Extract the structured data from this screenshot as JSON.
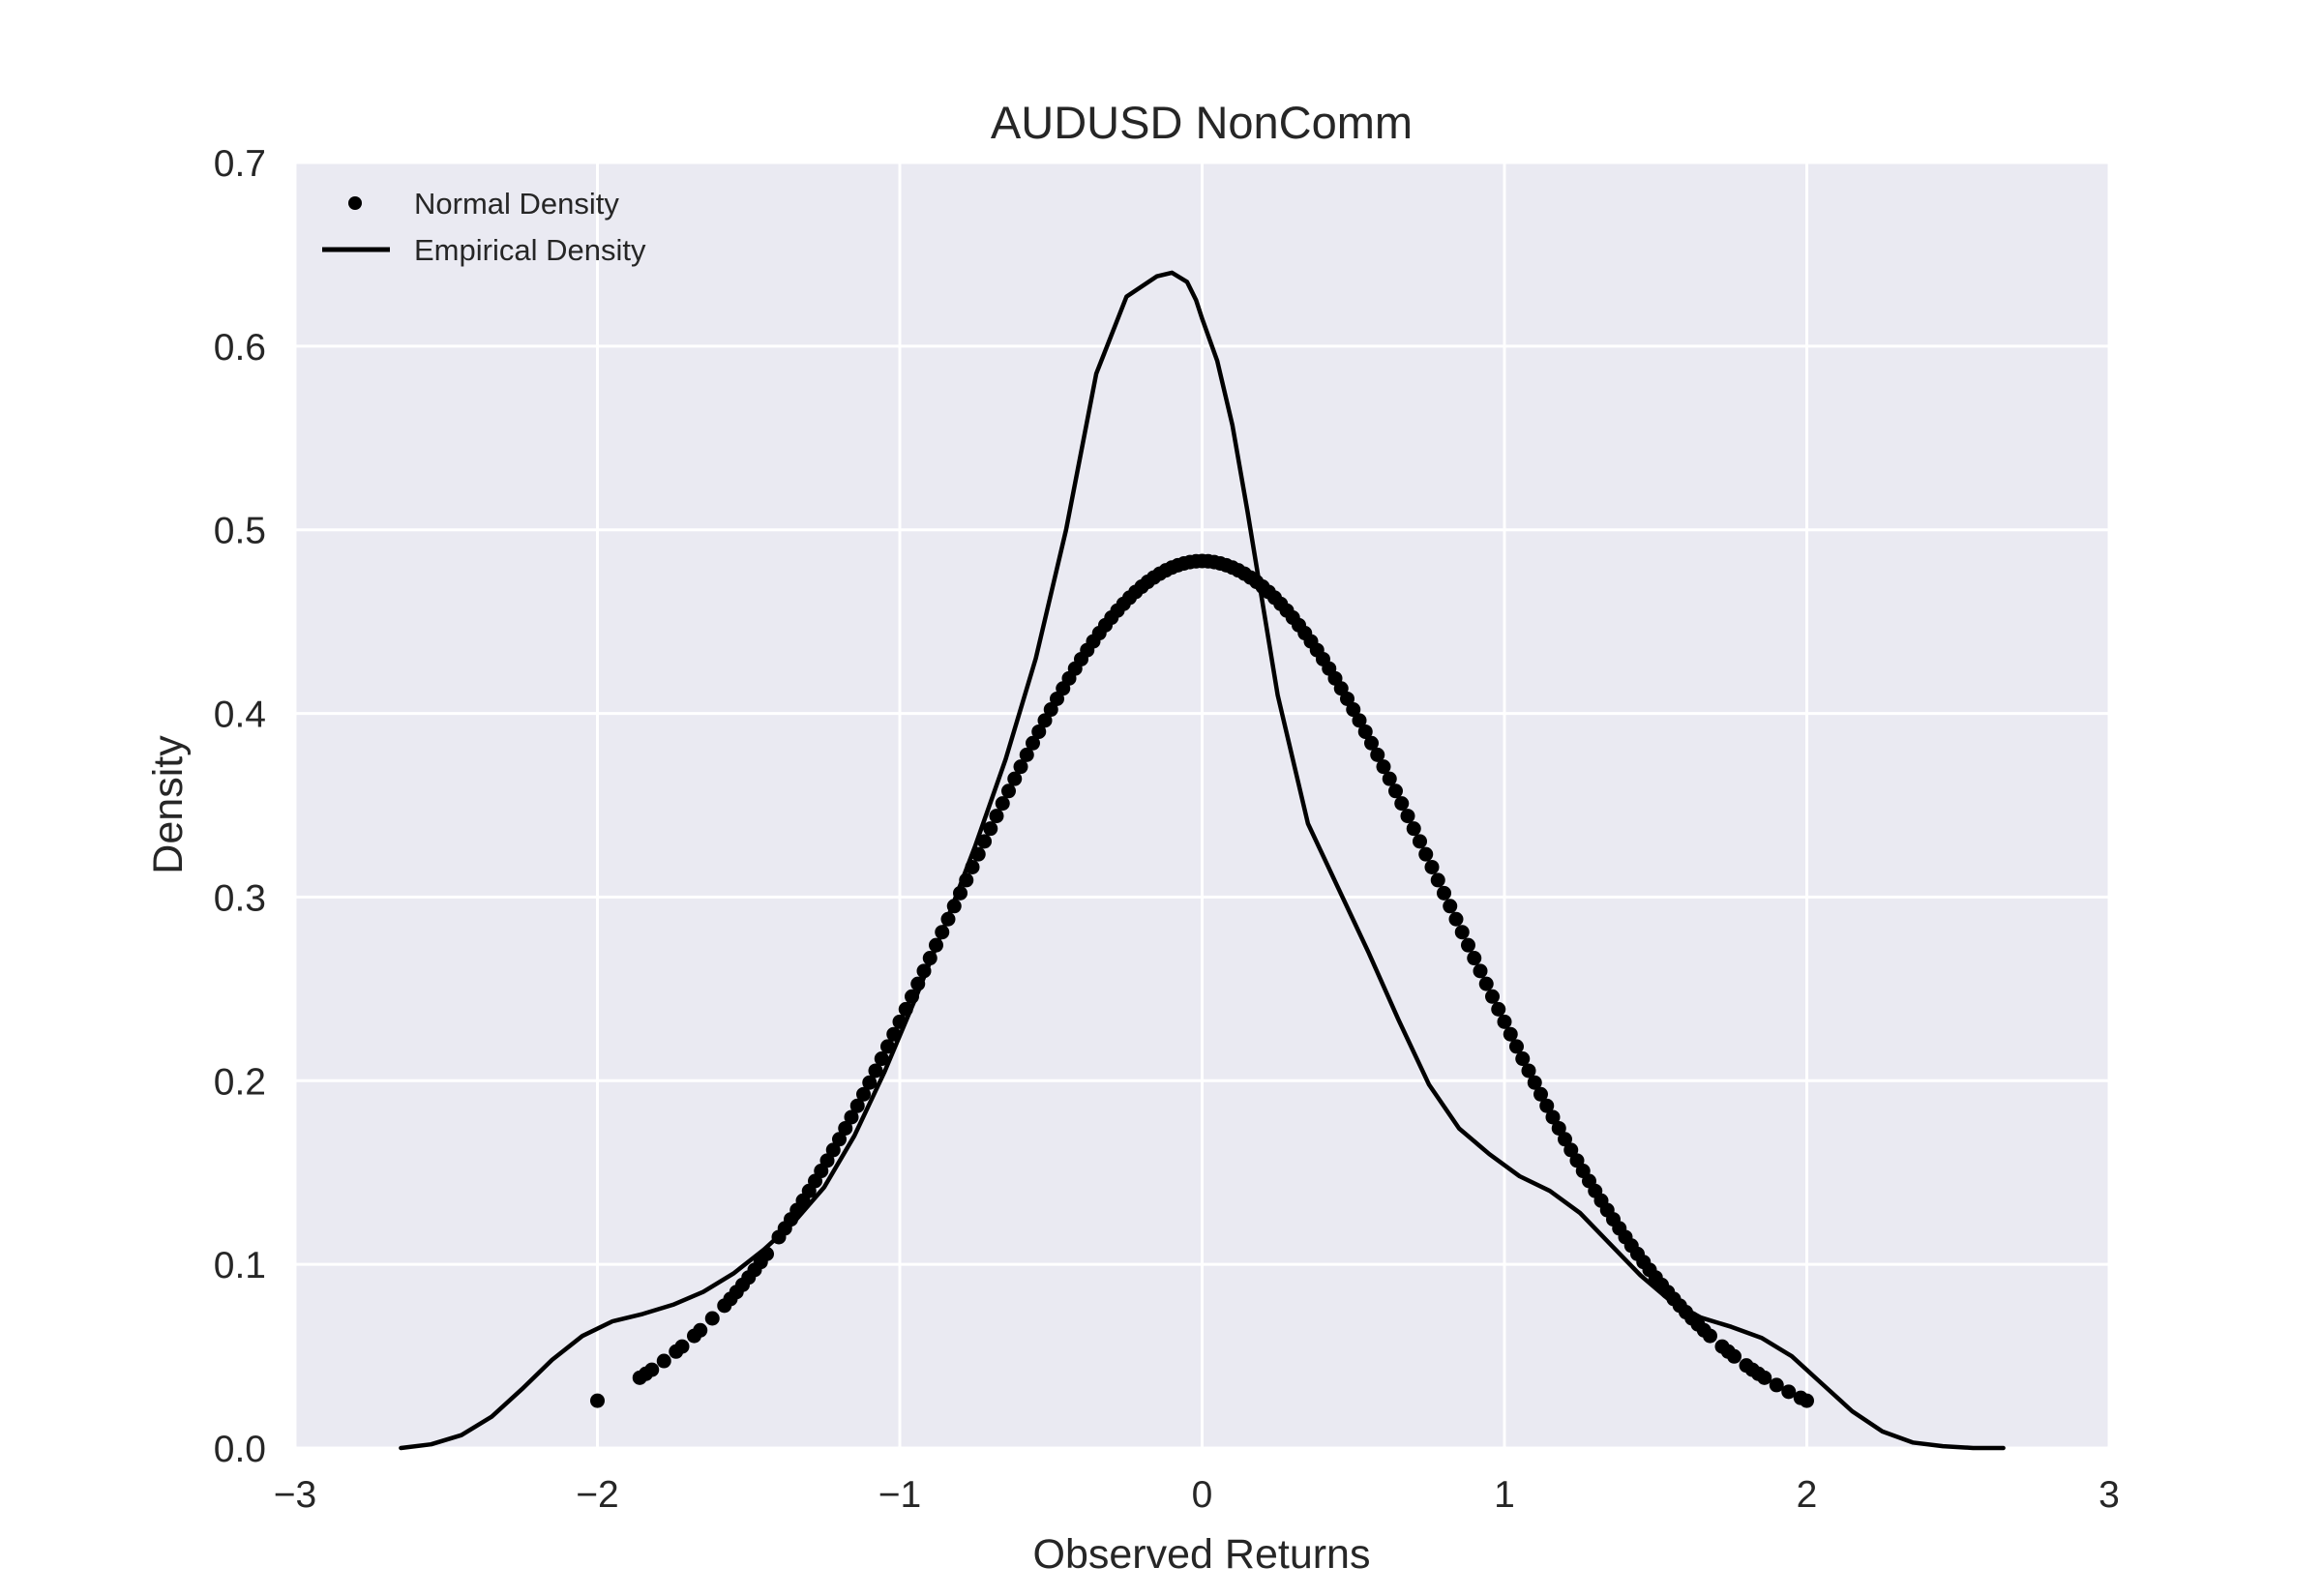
{
  "chart_data": {
    "type": "line",
    "title": "AUDUSD NonComm",
    "xlabel": "Observed Returns",
    "ylabel": "Density",
    "xlim": [
      -3,
      3
    ],
    "ylim": [
      0,
      0.7
    ],
    "x_ticks": [
      -3,
      -2,
      -1,
      0,
      1,
      2,
      3
    ],
    "x_tick_labels": [
      "−3",
      "−2",
      "−1",
      "0",
      "1",
      "2",
      "3"
    ],
    "y_ticks": [
      0.0,
      0.1,
      0.2,
      0.3,
      0.4,
      0.5,
      0.6,
      0.7
    ],
    "y_tick_labels": [
      "0.0",
      "0.1",
      "0.2",
      "0.3",
      "0.4",
      "0.5",
      "0.6",
      "0.7"
    ],
    "grid": true,
    "legend_position": "top-left",
    "background_color": "#eaeaf2",
    "grid_color": "#ffffff",
    "series_color": "#000000",
    "series": [
      {
        "name": "Normal Density",
        "style": "markers",
        "mu": 0.0,
        "sigma": 0.826,
        "x": [
          -2.0,
          -1.86,
          -1.84,
          -1.82,
          -1.78,
          -1.74,
          -1.72,
          -1.68,
          -1.66,
          -1.62,
          -1.58,
          -1.56,
          -1.54,
          -1.52,
          -1.5,
          -1.48,
          -1.46,
          -1.44,
          -1.4,
          -1.38,
          -1.36,
          -1.34,
          -1.32,
          -1.3,
          -1.28,
          -1.26,
          -1.24,
          -1.22,
          -1.2,
          -1.18,
          -1.16,
          -1.14,
          -1.12,
          -1.1,
          -1.08,
          -1.06,
          -1.04,
          -1.02,
          -1.0,
          -0.98,
          -0.96,
          -0.94,
          -0.92,
          -0.9,
          -0.88,
          -0.86,
          -0.84,
          -0.82,
          -0.8,
          -0.78,
          -0.76,
          -0.74,
          -0.72,
          -0.7,
          -0.68,
          -0.66,
          -0.64,
          -0.62,
          -0.6,
          -0.58,
          -0.56,
          -0.54,
          -0.52,
          -0.5,
          -0.48,
          -0.46,
          -0.44,
          -0.42,
          -0.4,
          -0.38,
          -0.36,
          -0.34,
          -0.32,
          -0.3,
          -0.28,
          -0.26,
          -0.24,
          -0.22,
          -0.2,
          -0.18,
          -0.16,
          -0.14,
          -0.12,
          -0.1,
          -0.08,
          -0.06,
          -0.04,
          -0.02,
          0.0,
          0.02,
          0.04,
          0.06,
          0.08,
          0.1,
          0.12,
          0.14,
          0.16,
          0.18,
          0.2,
          0.22,
          0.24,
          0.26,
          0.28,
          0.3,
          0.32,
          0.34,
          0.36,
          0.38,
          0.4,
          0.42,
          0.44,
          0.46,
          0.48,
          0.5,
          0.52,
          0.54,
          0.56,
          0.58,
          0.6,
          0.62,
          0.64,
          0.66,
          0.68,
          0.7,
          0.72,
          0.74,
          0.76,
          0.78,
          0.8,
          0.82,
          0.84,
          0.86,
          0.88,
          0.9,
          0.92,
          0.94,
          0.96,
          0.98,
          1.0,
          1.02,
          1.04,
          1.06,
          1.08,
          1.1,
          1.12,
          1.14,
          1.16,
          1.18,
          1.2,
          1.22,
          1.24,
          1.26,
          1.28,
          1.3,
          1.32,
          1.34,
          1.36,
          1.38,
          1.4,
          1.42,
          1.44,
          1.46,
          1.48,
          1.5,
          1.52,
          1.54,
          1.56,
          1.58,
          1.6,
          1.62,
          1.64,
          1.66,
          1.68,
          1.72,
          1.74,
          1.76,
          1.8,
          1.82,
          1.84,
          1.86,
          1.9,
          1.94,
          1.98,
          2.0
        ]
      },
      {
        "name": "Empirical Density",
        "style": "line",
        "x": [
          -2.65,
          -2.55,
          -2.45,
          -2.35,
          -2.25,
          -2.15,
          -2.05,
          -1.95,
          -1.85,
          -1.75,
          -1.65,
          -1.55,
          -1.45,
          -1.35,
          -1.25,
          -1.15,
          -1.05,
          -0.95,
          -0.85,
          -0.75,
          -0.65,
          -0.55,
          -0.45,
          -0.35,
          -0.25,
          -0.15,
          -0.1,
          -0.05,
          -0.02,
          0.0,
          0.05,
          0.1,
          0.15,
          0.25,
          0.35,
          0.45,
          0.55,
          0.65,
          0.75,
          0.85,
          0.95,
          1.05,
          1.15,
          1.25,
          1.35,
          1.45,
          1.55,
          1.65,
          1.75,
          1.85,
          1.95,
          2.05,
          2.15,
          2.25,
          2.35,
          2.45,
          2.55,
          2.65
        ],
        "y": [
          0.0,
          0.002,
          0.007,
          0.017,
          0.032,
          0.048,
          0.061,
          0.069,
          0.073,
          0.078,
          0.085,
          0.095,
          0.108,
          0.123,
          0.142,
          0.17,
          0.205,
          0.244,
          0.285,
          0.328,
          0.375,
          0.43,
          0.5,
          0.585,
          0.627,
          0.638,
          0.64,
          0.635,
          0.625,
          0.615,
          0.592,
          0.557,
          0.51,
          0.41,
          0.34,
          0.305,
          0.27,
          0.233,
          0.198,
          0.174,
          0.16,
          0.148,
          0.14,
          0.128,
          0.111,
          0.094,
          0.08,
          0.071,
          0.066,
          0.06,
          0.05,
          0.035,
          0.02,
          0.009,
          0.003,
          0.001,
          0.0,
          0.0
        ]
      }
    ]
  }
}
